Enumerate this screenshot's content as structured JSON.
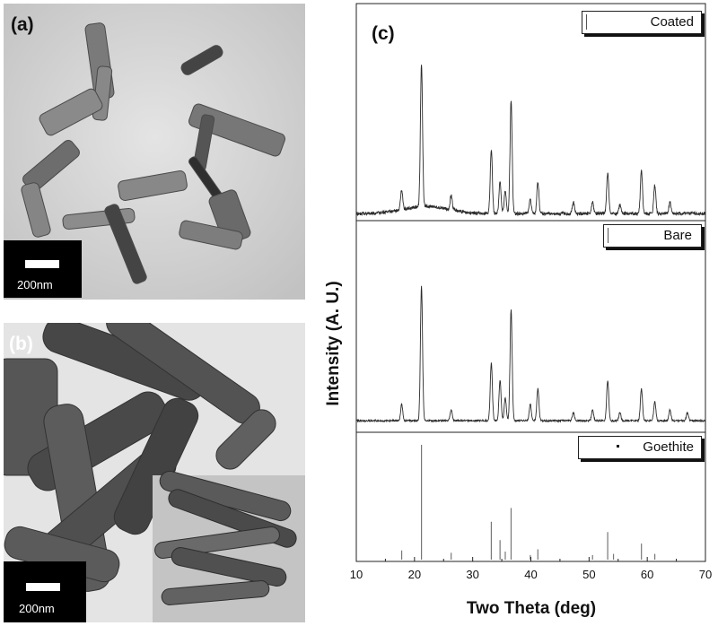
{
  "panels": {
    "a": {
      "label": "(a)",
      "scale_label": "200nm"
    },
    "b": {
      "label": "(b)",
      "scale_label": "200nm"
    },
    "c": {
      "label": "(c)"
    }
  },
  "chart_data": {
    "type": "line",
    "title": "",
    "xlabel": "Two Theta (deg)",
    "ylabel": "Intensity (A. U.)",
    "xlim": [
      10,
      70
    ],
    "xticks": [
      10,
      20,
      30,
      40,
      50,
      60,
      70
    ],
    "grid": false,
    "series": [
      {
        "name": "Coated",
        "peaks": [
          {
            "x": 17.8,
            "y": 0.14
          },
          {
            "x": 21.2,
            "y": 1.0
          },
          {
            "x": 26.3,
            "y": 0.1
          },
          {
            "x": 33.2,
            "y": 0.44
          },
          {
            "x": 34.7,
            "y": 0.22
          },
          {
            "x": 35.6,
            "y": 0.16
          },
          {
            "x": 36.6,
            "y": 0.79
          },
          {
            "x": 39.9,
            "y": 0.1
          },
          {
            "x": 41.2,
            "y": 0.22
          },
          {
            "x": 47.3,
            "y": 0.08
          },
          {
            "x": 50.6,
            "y": 0.08
          },
          {
            "x": 53.2,
            "y": 0.28
          },
          {
            "x": 55.3,
            "y": 0.06
          },
          {
            "x": 59.0,
            "y": 0.3
          },
          {
            "x": 61.3,
            "y": 0.2
          },
          {
            "x": 63.9,
            "y": 0.08
          }
        ]
      },
      {
        "name": "Bare",
        "peaks": [
          {
            "x": 17.8,
            "y": 0.12
          },
          {
            "x": 21.2,
            "y": 1.0
          },
          {
            "x": 26.3,
            "y": 0.08
          },
          {
            "x": 33.2,
            "y": 0.43
          },
          {
            "x": 34.7,
            "y": 0.3
          },
          {
            "x": 35.6,
            "y": 0.17
          },
          {
            "x": 36.6,
            "y": 0.82
          },
          {
            "x": 39.9,
            "y": 0.12
          },
          {
            "x": 41.2,
            "y": 0.24
          },
          {
            "x": 47.3,
            "y": 0.06
          },
          {
            "x": 50.6,
            "y": 0.08
          },
          {
            "x": 53.2,
            "y": 0.3
          },
          {
            "x": 55.3,
            "y": 0.06
          },
          {
            "x": 59.0,
            "y": 0.24
          },
          {
            "x": 61.3,
            "y": 0.14
          },
          {
            "x": 63.9,
            "y": 0.08
          },
          {
            "x": 66.9,
            "y": 0.06
          }
        ]
      },
      {
        "name": "Goethite",
        "type": "stick",
        "peaks": [
          {
            "x": 17.8,
            "y": 0.08
          },
          {
            "x": 21.2,
            "y": 1.0
          },
          {
            "x": 26.3,
            "y": 0.06
          },
          {
            "x": 33.2,
            "y": 0.33
          },
          {
            "x": 34.7,
            "y": 0.17
          },
          {
            "x": 35.6,
            "y": 0.07
          },
          {
            "x": 36.6,
            "y": 0.45
          },
          {
            "x": 39.9,
            "y": 0.04
          },
          {
            "x": 41.2,
            "y": 0.09
          },
          {
            "x": 50.6,
            "y": 0.04
          },
          {
            "x": 53.2,
            "y": 0.24
          },
          {
            "x": 54.2,
            "y": 0.05
          },
          {
            "x": 59.0,
            "y": 0.14
          },
          {
            "x": 61.3,
            "y": 0.05
          }
        ]
      }
    ],
    "legend": [
      "Coated",
      "Bare",
      "Goethite"
    ]
  },
  "colors": {
    "tem_a_bg": "#d4d4d4",
    "tem_b_bg": "#e2e2e2",
    "rod_dark": "#3a3a3a",
    "line": "#2b2b2b"
  }
}
